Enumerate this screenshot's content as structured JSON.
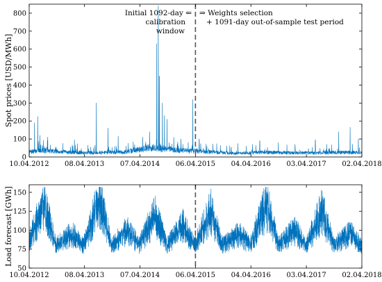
{
  "colors": {
    "series": "#0072BD",
    "split_line": "#555555",
    "frame": "#000000"
  },
  "annotation": {
    "left_line1": "Initial 1092-day ⇐",
    "left_line2": "calibration",
    "left_line3": "window",
    "right_line1": "⇒ Weights selection",
    "right_line2": "+ 1091-day out-of-sample test period"
  },
  "chart_data": [
    {
      "type": "line",
      "title": "",
      "xlabel": "",
      "ylabel": "Spot prices [USD/MWh]",
      "x_ticks": [
        "10.04.2012",
        "08.04.2013",
        "07.04.2014",
        "06.04.2015",
        "04.04.2016",
        "03.04.2017",
        "02.04.2018"
      ],
      "xlim": [
        "10.04.2012",
        "02.04.2018"
      ],
      "y_ticks": [
        0,
        100,
        200,
        300,
        400,
        500,
        600,
        700,
        800
      ],
      "ylim": [
        0,
        850
      ],
      "split_date": "06.04.2015",
      "grid": false,
      "series": [
        {
          "baseline_points": [
            [
              "10.04.2012",
              30
            ],
            [
              "01.07.2012",
              40
            ],
            [
              "01.01.2013",
              28
            ],
            [
              "01.06.2013",
              25
            ],
            [
              "01.01.2014",
              30
            ],
            [
              "01.06.2014",
              55
            ],
            [
              "01.01.2015",
              40
            ],
            [
              "06.04.2015",
              35
            ],
            [
              "01.01.2016",
              22
            ],
            [
              "01.07.2016",
              28
            ],
            [
              "01.01.2017",
              25
            ],
            [
              "01.07.2017",
              25
            ],
            [
              "01.01.2018",
              28
            ],
            [
              "02.04.2018",
              25
            ]
          ],
          "spikes": [
            [
              "15.05.2012",
              190
            ],
            [
              "05.06.2012",
              225
            ],
            [
              "20.06.2012",
              120
            ],
            [
              "10.08.2012",
              110
            ],
            [
              "01.02.2013",
              95
            ],
            [
              "25.06.2013",
              300
            ],
            [
              "10.09.2013",
              160
            ],
            [
              "15.11.2013",
              115
            ],
            [
              "25.04.2014",
              110
            ],
            [
              "10.06.2014",
              140
            ],
            [
              "26.07.2014",
              630
            ],
            [
              "05.08.2014",
              840
            ],
            [
              "12.08.2014",
              450
            ],
            [
              "01.09.2014",
              300
            ],
            [
              "15.09.2014",
              230
            ],
            [
              "01.10.2014",
              210
            ],
            [
              "15.11.2014",
              110
            ],
            [
              "01.01.2015",
              100
            ],
            [
              "20.03.2015",
              320
            ],
            [
              "01.05.2015",
              100
            ],
            [
              "10.01.2016",
              75
            ],
            [
              "01.06.2016",
              90
            ],
            [
              "01.10.2016",
              80
            ],
            [
              "01.06.2017",
              95
            ],
            [
              "01.11.2017",
              140
            ],
            [
              "15.01.2018",
              165
            ],
            [
              "10.03.2018",
              100
            ]
          ]
        }
      ]
    },
    {
      "type": "line",
      "title": "",
      "xlabel": "",
      "ylabel": "Load forecast [GWh]",
      "x_ticks": [
        "10.04.2012",
        "08.04.2013",
        "07.04.2014",
        "06.04.2015",
        "04.04.2016",
        "03.04.2017",
        "02.04.2018"
      ],
      "xlim": [
        "10.04.2012",
        "02.04.2018"
      ],
      "y_ticks": [
        50,
        75,
        100,
        125,
        150
      ],
      "ylim": [
        50,
        160
      ],
      "split_date": "06.04.2015",
      "grid": false,
      "series": [
        {
          "seasonal_points": [
            [
              "10.04.2012",
              90
            ],
            [
              "15.07.2012",
              140
            ],
            [
              "01.10.2012",
              85
            ],
            [
              "15.01.2013",
              100
            ],
            [
              "01.04.2013",
              85
            ],
            [
              "15.07.2013",
              145
            ],
            [
              "01.10.2013",
              85
            ],
            [
              "15.01.2014",
              105
            ],
            [
              "01.04.2014",
              85
            ],
            [
              "15.07.2014",
              125
            ],
            [
              "01.10.2014",
              85
            ],
            [
              "15.01.2015",
              110
            ],
            [
              "01.04.2015",
              85
            ],
            [
              "15.07.2015",
              130
            ],
            [
              "01.10.2015",
              85
            ],
            [
              "15.01.2016",
              100
            ],
            [
              "01.04.2016",
              85
            ],
            [
              "15.07.2016",
              140
            ],
            [
              "01.10.2016",
              85
            ],
            [
              "15.01.2017",
              105
            ],
            [
              "01.04.2017",
              85
            ],
            [
              "15.07.2017",
              130
            ],
            [
              "01.10.2017",
              85
            ],
            [
              "15.01.2018",
              100
            ],
            [
              "02.04.2018",
              85
            ]
          ]
        }
      ]
    }
  ]
}
